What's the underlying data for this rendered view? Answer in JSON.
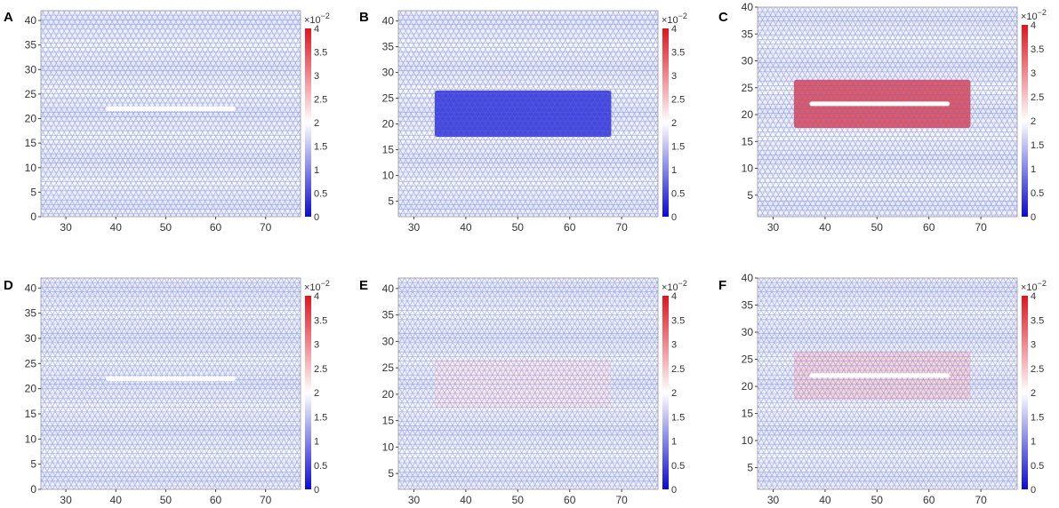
{
  "figure": {
    "description_free": true
  },
  "colors": {
    "low": "#1a1adc",
    "mid": "#ffffff",
    "high": "#e0141e",
    "lattice": "#5a6ad8",
    "defect": "#ffffff"
  },
  "colorbar": {
    "multiplier_base": "×10",
    "multiplier_exp": "−2",
    "ticks": [
      "4",
      "3.5",
      "3",
      "2.5",
      "2",
      "1.5",
      "1",
      "0.5",
      "0"
    ],
    "tick_values": [
      4,
      3.5,
      3,
      2.5,
      2,
      1.5,
      1,
      0.5,
      0
    ],
    "range": [
      0,
      4
    ]
  },
  "chart_data": [
    {
      "type": "heatmap",
      "panel": "A",
      "xlim": [
        25,
        77
      ],
      "ylim": [
        0,
        42
      ],
      "xticks": [
        "30",
        "40",
        "50",
        "60",
        "70"
      ],
      "xtick_values": [
        30,
        40,
        50,
        60,
        70
      ],
      "yticks": [
        "0",
        "5",
        "10",
        "15",
        "20",
        "25",
        "30",
        "35",
        "40"
      ],
      "ytick_values": [
        0,
        5,
        10,
        15,
        20,
        25,
        30,
        35,
        40
      ],
      "background_level": 0.9,
      "region": null,
      "crack": {
        "x": [
          38,
          64
        ],
        "y": 22
      }
    },
    {
      "type": "heatmap",
      "panel": "B",
      "xlim": [
        27,
        77
      ],
      "ylim": [
        2,
        42
      ],
      "xticks": [
        "30",
        "40",
        "50",
        "60",
        "70"
      ],
      "xtick_values": [
        30,
        40,
        50,
        60,
        70
      ],
      "yticks": [
        "5",
        "10",
        "15",
        "20",
        "25",
        "30",
        "35",
        "40"
      ],
      "ytick_values": [
        5,
        10,
        15,
        20,
        25,
        30,
        35,
        40
      ],
      "background_level": 0.9,
      "region": {
        "x": [
          34,
          68
        ],
        "y": [
          17.5,
          26.5
        ],
        "level": 0.3
      },
      "crack": null
    },
    {
      "type": "heatmap",
      "panel": "C",
      "xlim": [
        27,
        77
      ],
      "ylim": [
        1,
        40
      ],
      "xticks": [
        "30",
        "40",
        "50",
        "60",
        "70"
      ],
      "xtick_values": [
        30,
        40,
        50,
        60,
        70
      ],
      "yticks": [
        "5",
        "10",
        "15",
        "20",
        "25",
        "30",
        "35",
        "40"
      ],
      "ytick_values": [
        5,
        10,
        15,
        20,
        25,
        30,
        35,
        40
      ],
      "background_level": 0.9,
      "region": {
        "x": [
          34,
          68
        ],
        "y": [
          17.5,
          26.5
        ],
        "level": 3.6
      },
      "crack": {
        "x": [
          37,
          64
        ],
        "y": 22
      }
    },
    {
      "type": "heatmap",
      "panel": "D",
      "xlim": [
        25,
        77
      ],
      "ylim": [
        0,
        42
      ],
      "xticks": [
        "30",
        "40",
        "50",
        "60",
        "70"
      ],
      "xtick_values": [
        30,
        40,
        50,
        60,
        70
      ],
      "yticks": [
        "0",
        "5",
        "10",
        "15",
        "20",
        "25",
        "30",
        "35",
        "40"
      ],
      "ytick_values": [
        0,
        5,
        10,
        15,
        20,
        25,
        30,
        35,
        40
      ],
      "background_level": 0.9,
      "region": null,
      "crack": {
        "x": [
          38,
          64
        ],
        "y": 22
      }
    },
    {
      "type": "heatmap",
      "panel": "E",
      "xlim": [
        27,
        77
      ],
      "ylim": [
        2,
        42
      ],
      "xticks": [
        "30",
        "40",
        "50",
        "60",
        "70"
      ],
      "xtick_values": [
        30,
        40,
        50,
        60,
        70
      ],
      "yticks": [
        "5",
        "10",
        "15",
        "20",
        "25",
        "30",
        "35",
        "40"
      ],
      "ytick_values": [
        5,
        10,
        15,
        20,
        25,
        30,
        35,
        40
      ],
      "background_level": 0.9,
      "region": {
        "x": [
          34,
          68
        ],
        "y": [
          17.5,
          26.5
        ],
        "level": 2.2
      },
      "crack": null
    },
    {
      "type": "heatmap",
      "panel": "F",
      "xlim": [
        27,
        77
      ],
      "ylim": [
        1,
        40
      ],
      "xticks": [
        "30",
        "40",
        "50",
        "60",
        "70"
      ],
      "xtick_values": [
        30,
        40,
        50,
        60,
        70
      ],
      "yticks": [
        "5",
        "10",
        "15",
        "20",
        "25",
        "30",
        "35",
        "40"
      ],
      "ytick_values": [
        5,
        10,
        15,
        20,
        25,
        30,
        35,
        40
      ],
      "background_level": 0.9,
      "region": {
        "x": [
          34,
          68
        ],
        "y": [
          17.5,
          26.5
        ],
        "level": 2.4
      },
      "crack": {
        "x": [
          37,
          64
        ],
        "y": 22
      }
    }
  ]
}
